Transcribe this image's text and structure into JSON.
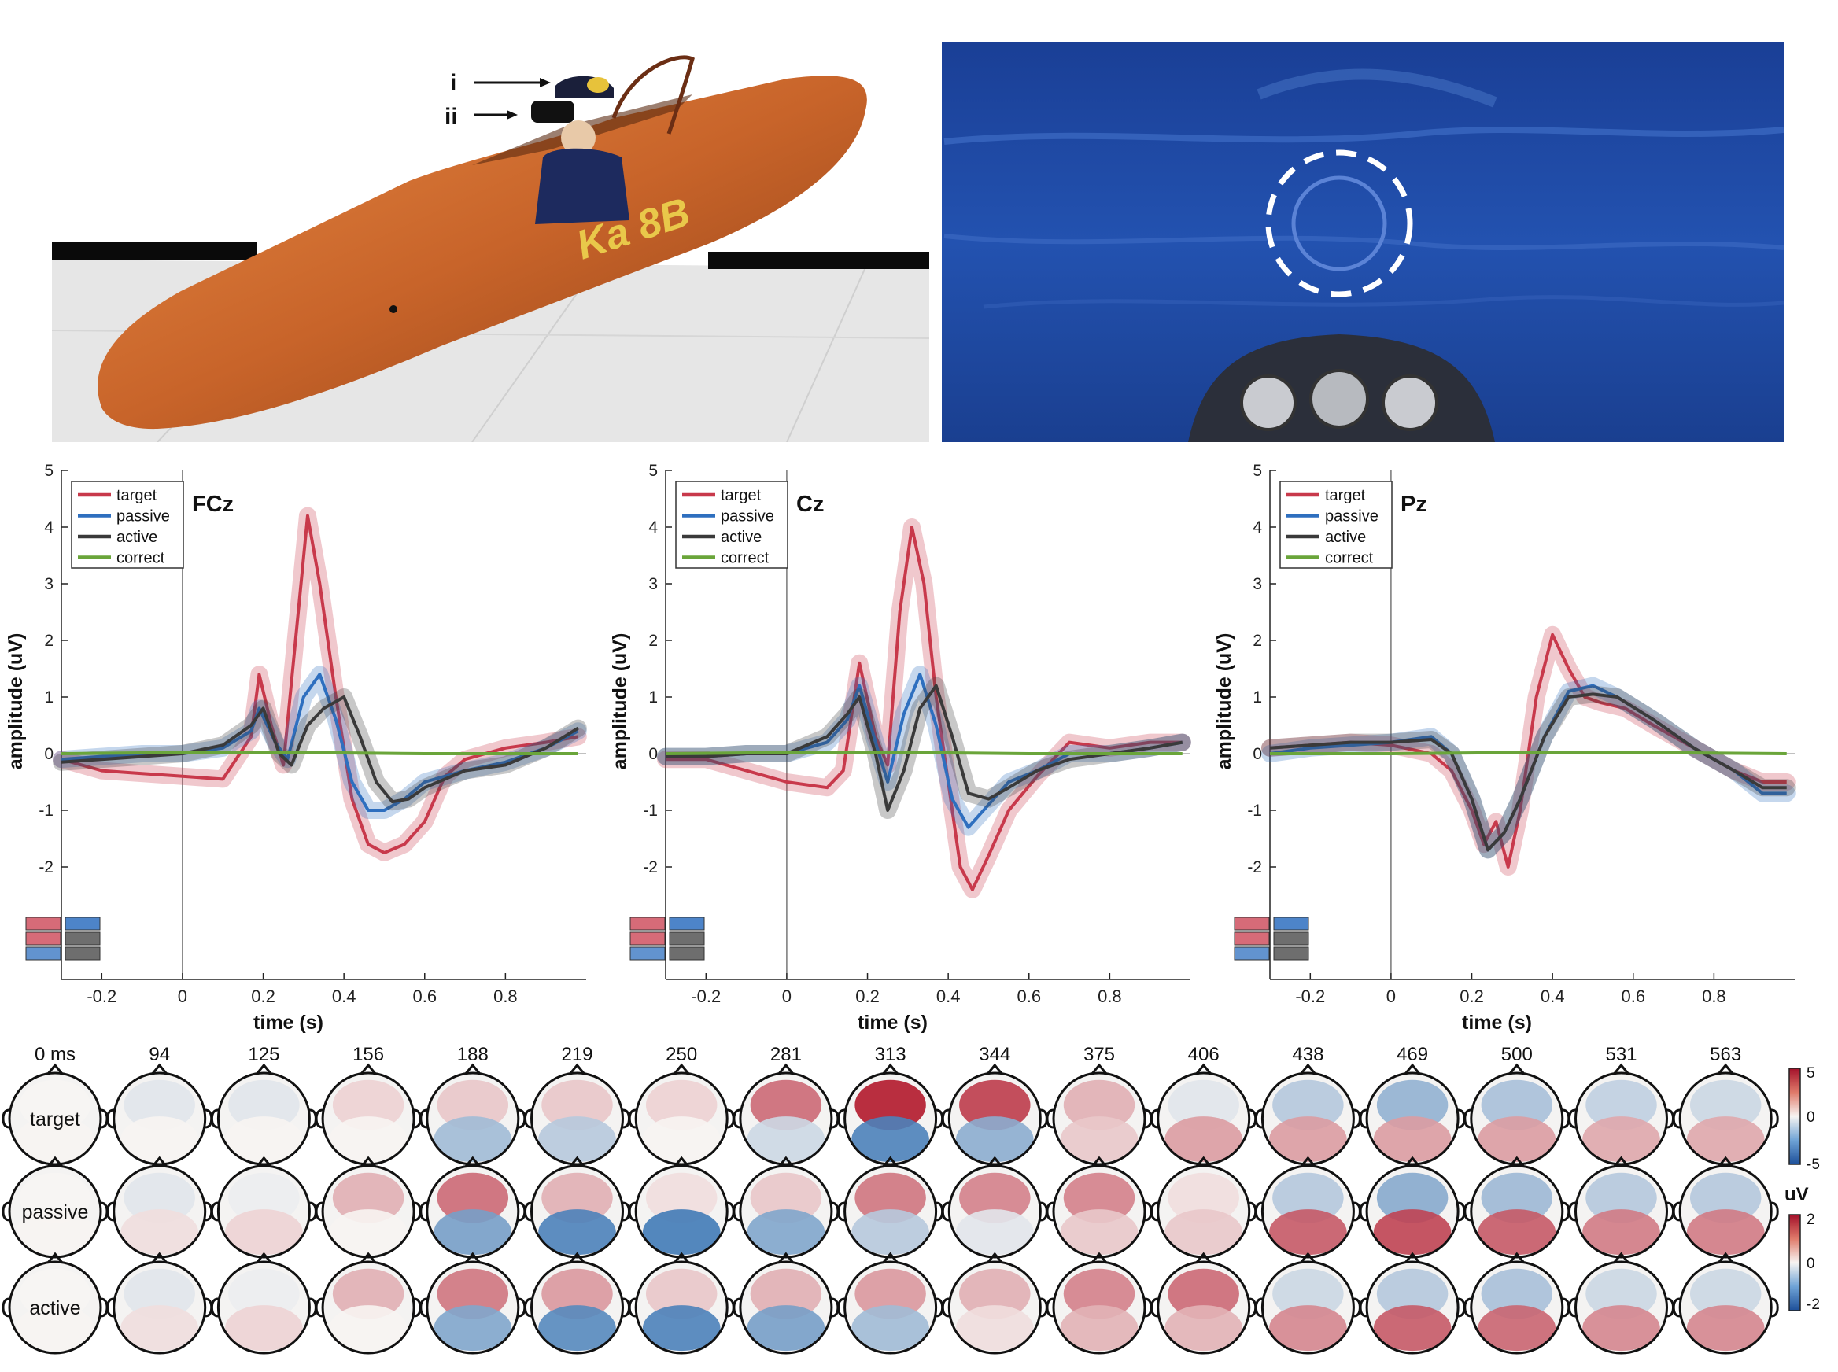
{
  "photo": {
    "annotations": [
      "i",
      "ii"
    ],
    "glider_lettering": "Ka 8B",
    "colors": {
      "hull": "#c8642a",
      "floor": "#e6e6e6",
      "bar": "#0a0a0a"
    }
  },
  "vr_view": {
    "colors": {
      "sky": "#1e4aa6",
      "target_ring": "#ffffff"
    }
  },
  "erp_plots": {
    "ylabel": "amplitude (uV)",
    "xlabel": "time (s)",
    "ylim": [
      -2.5,
      5
    ],
    "xlim": [
      -0.3,
      1.0
    ],
    "yticks": [
      "5",
      "4",
      "3",
      "2",
      "1",
      "0",
      "-1",
      "-2"
    ],
    "xticks": [
      "-0.2",
      "0",
      "0.2",
      "0.4",
      "0.6",
      "0.8"
    ],
    "legend": [
      "target",
      "passive",
      "active",
      "correct"
    ],
    "colors": {
      "target": "#c8394b",
      "passive": "#2e6fbf",
      "active": "#3a3a3a",
      "correct": "#6aa53a"
    }
  },
  "chart_data": [
    {
      "type": "line",
      "title": "FCz",
      "xlabel": "time (s)",
      "ylabel": "amplitude (uV)",
      "xlim": [
        -0.3,
        1.0
      ],
      "ylim": [
        -2.5,
        5
      ],
      "grid": false,
      "legend_position": "top-left",
      "series": [
        {
          "name": "target",
          "points": [
            [
              -0.3,
              -0.1
            ],
            [
              -0.2,
              -0.3
            ],
            [
              -0.1,
              -0.35
            ],
            [
              0.0,
              -0.4
            ],
            [
              0.1,
              -0.45
            ],
            [
              0.17,
              0.3
            ],
            [
              0.19,
              1.4
            ],
            [
              0.22,
              0.5
            ],
            [
              0.25,
              -0.2
            ],
            [
              0.28,
              2.0
            ],
            [
              0.31,
              4.2
            ],
            [
              0.34,
              3.0
            ],
            [
              0.38,
              1.0
            ],
            [
              0.42,
              -0.8
            ],
            [
              0.46,
              -1.6
            ],
            [
              0.5,
              -1.75
            ],
            [
              0.55,
              -1.6
            ],
            [
              0.6,
              -1.2
            ],
            [
              0.65,
              -0.4
            ],
            [
              0.7,
              -0.1
            ],
            [
              0.8,
              0.1
            ],
            [
              0.9,
              0.2
            ],
            [
              0.98,
              0.3
            ]
          ]
        },
        {
          "name": "passive",
          "points": [
            [
              -0.3,
              -0.1
            ],
            [
              -0.2,
              -0.05
            ],
            [
              -0.1,
              0.0
            ],
            [
              0.0,
              0.0
            ],
            [
              0.1,
              0.1
            ],
            [
              0.17,
              0.4
            ],
            [
              0.19,
              0.8
            ],
            [
              0.23,
              0.2
            ],
            [
              0.26,
              -0.1
            ],
            [
              0.3,
              1.0
            ],
            [
              0.34,
              1.4
            ],
            [
              0.38,
              0.6
            ],
            [
              0.42,
              -0.5
            ],
            [
              0.46,
              -1.0
            ],
            [
              0.5,
              -1.0
            ],
            [
              0.55,
              -0.8
            ],
            [
              0.6,
              -0.5
            ],
            [
              0.7,
              -0.3
            ],
            [
              0.8,
              -0.15
            ],
            [
              0.9,
              0.1
            ],
            [
              0.98,
              0.4
            ]
          ]
        },
        {
          "name": "active",
          "points": [
            [
              -0.3,
              -0.15
            ],
            [
              -0.2,
              -0.1
            ],
            [
              -0.1,
              -0.05
            ],
            [
              0.0,
              0.0
            ],
            [
              0.1,
              0.15
            ],
            [
              0.17,
              0.5
            ],
            [
              0.2,
              0.8
            ],
            [
              0.24,
              0.0
            ],
            [
              0.27,
              -0.2
            ],
            [
              0.31,
              0.5
            ],
            [
              0.35,
              0.8
            ],
            [
              0.4,
              1.0
            ],
            [
              0.44,
              0.3
            ],
            [
              0.48,
              -0.5
            ],
            [
              0.52,
              -0.85
            ],
            [
              0.56,
              -0.8
            ],
            [
              0.6,
              -0.6
            ],
            [
              0.7,
              -0.3
            ],
            [
              0.8,
              -0.2
            ],
            [
              0.9,
              0.1
            ],
            [
              0.98,
              0.45
            ]
          ]
        },
        {
          "name": "correct",
          "points": [
            [
              -0.3,
              0.0
            ],
            [
              0.0,
              0.02
            ],
            [
              0.3,
              0.02
            ],
            [
              0.6,
              0.0
            ],
            [
              0.98,
              0.0
            ]
          ]
        }
      ]
    },
    {
      "type": "line",
      "title": "Cz",
      "xlabel": "time (s)",
      "ylabel": "amplitude (uV)",
      "xlim": [
        -0.3,
        1.0
      ],
      "ylim": [
        -2.5,
        5
      ],
      "grid": false,
      "legend_position": "top-left",
      "series": [
        {
          "name": "target",
          "points": [
            [
              -0.3,
              -0.1
            ],
            [
              -0.2,
              -0.1
            ],
            [
              -0.1,
              -0.3
            ],
            [
              0.0,
              -0.5
            ],
            [
              0.1,
              -0.6
            ],
            [
              0.14,
              -0.3
            ],
            [
              0.18,
              1.6
            ],
            [
              0.22,
              0.3
            ],
            [
              0.25,
              -0.2
            ],
            [
              0.28,
              2.5
            ],
            [
              0.31,
              4.0
            ],
            [
              0.34,
              3.0
            ],
            [
              0.37,
              1.0
            ],
            [
              0.4,
              -0.5
            ],
            [
              0.43,
              -2.0
            ],
            [
              0.46,
              -2.4
            ],
            [
              0.5,
              -1.8
            ],
            [
              0.55,
              -1.0
            ],
            [
              0.62,
              -0.4
            ],
            [
              0.7,
              0.2
            ],
            [
              0.8,
              0.1
            ],
            [
              0.9,
              0.2
            ],
            [
              0.98,
              0.2
            ]
          ]
        },
        {
          "name": "passive",
          "points": [
            [
              -0.3,
              -0.05
            ],
            [
              -0.2,
              -0.05
            ],
            [
              -0.1,
              0.0
            ],
            [
              0.0,
              0.0
            ],
            [
              0.1,
              0.2
            ],
            [
              0.15,
              0.6
            ],
            [
              0.18,
              1.2
            ],
            [
              0.22,
              0.2
            ],
            [
              0.25,
              -0.5
            ],
            [
              0.29,
              0.7
            ],
            [
              0.33,
              1.4
            ],
            [
              0.37,
              0.5
            ],
            [
              0.41,
              -0.8
            ],
            [
              0.45,
              -1.3
            ],
            [
              0.5,
              -0.9
            ],
            [
              0.55,
              -0.5
            ],
            [
              0.62,
              -0.3
            ],
            [
              0.7,
              0.0
            ],
            [
              0.8,
              0.0
            ],
            [
              0.9,
              0.1
            ],
            [
              0.98,
              0.2
            ]
          ]
        },
        {
          "name": "active",
          "points": [
            [
              -0.3,
              -0.05
            ],
            [
              -0.2,
              -0.05
            ],
            [
              -0.1,
              0.0
            ],
            [
              0.0,
              0.0
            ],
            [
              0.1,
              0.3
            ],
            [
              0.15,
              0.7
            ],
            [
              0.18,
              1.0
            ],
            [
              0.22,
              0.0
            ],
            [
              0.25,
              -1.0
            ],
            [
              0.29,
              -0.3
            ],
            [
              0.33,
              0.8
            ],
            [
              0.37,
              1.2
            ],
            [
              0.41,
              0.3
            ],
            [
              0.45,
              -0.7
            ],
            [
              0.5,
              -0.8
            ],
            [
              0.55,
              -0.6
            ],
            [
              0.62,
              -0.3
            ],
            [
              0.7,
              -0.1
            ],
            [
              0.8,
              0.0
            ],
            [
              0.9,
              0.1
            ],
            [
              0.98,
              0.2
            ]
          ]
        },
        {
          "name": "correct",
          "points": [
            [
              -0.3,
              0.0
            ],
            [
              0.0,
              0.02
            ],
            [
              0.3,
              0.02
            ],
            [
              0.6,
              0.0
            ],
            [
              0.98,
              0.0
            ]
          ]
        }
      ]
    },
    {
      "type": "line",
      "title": "Pz",
      "xlabel": "time (s)",
      "ylabel": "amplitude (uV)",
      "xlim": [
        -0.3,
        1.0
      ],
      "ylim": [
        -2.5,
        5
      ],
      "grid": false,
      "legend_position": "top-left",
      "series": [
        {
          "name": "target",
          "points": [
            [
              -0.3,
              0.1
            ],
            [
              -0.2,
              0.15
            ],
            [
              -0.1,
              0.2
            ],
            [
              0.0,
              0.15
            ],
            [
              0.1,
              0.0
            ],
            [
              0.15,
              -0.3
            ],
            [
              0.2,
              -1.0
            ],
            [
              0.23,
              -1.6
            ],
            [
              0.26,
              -1.2
            ],
            [
              0.29,
              -2.0
            ],
            [
              0.32,
              -1.0
            ],
            [
              0.36,
              1.0
            ],
            [
              0.4,
              2.1
            ],
            [
              0.44,
              1.5
            ],
            [
              0.48,
              1.0
            ],
            [
              0.52,
              0.9
            ],
            [
              0.58,
              0.8
            ],
            [
              0.65,
              0.5
            ],
            [
              0.75,
              0.1
            ],
            [
              0.85,
              -0.3
            ],
            [
              0.92,
              -0.5
            ],
            [
              0.98,
              -0.5
            ]
          ]
        },
        {
          "name": "passive",
          "points": [
            [
              -0.3,
              0.0
            ],
            [
              -0.2,
              0.1
            ],
            [
              -0.1,
              0.15
            ],
            [
              0.0,
              0.2
            ],
            [
              0.1,
              0.3
            ],
            [
              0.15,
              0.0
            ],
            [
              0.2,
              -0.8
            ],
            [
              0.24,
              -1.7
            ],
            [
              0.28,
              -1.4
            ],
            [
              0.32,
              -0.8
            ],
            [
              0.38,
              0.3
            ],
            [
              0.44,
              1.1
            ],
            [
              0.5,
              1.2
            ],
            [
              0.56,
              1.0
            ],
            [
              0.65,
              0.6
            ],
            [
              0.75,
              0.1
            ],
            [
              0.85,
              -0.3
            ],
            [
              0.92,
              -0.7
            ],
            [
              0.98,
              -0.7
            ]
          ]
        },
        {
          "name": "active",
          "points": [
            [
              -0.3,
              0.1
            ],
            [
              -0.2,
              0.15
            ],
            [
              -0.1,
              0.2
            ],
            [
              0.0,
              0.2
            ],
            [
              0.1,
              0.25
            ],
            [
              0.15,
              0.0
            ],
            [
              0.2,
              -0.8
            ],
            [
              0.24,
              -1.7
            ],
            [
              0.28,
              -1.4
            ],
            [
              0.32,
              -0.8
            ],
            [
              0.38,
              0.3
            ],
            [
              0.44,
              1.0
            ],
            [
              0.5,
              1.05
            ],
            [
              0.56,
              1.0
            ],
            [
              0.65,
              0.6
            ],
            [
              0.75,
              0.1
            ],
            [
              0.85,
              -0.3
            ],
            [
              0.92,
              -0.6
            ],
            [
              0.98,
              -0.6
            ]
          ]
        },
        {
          "name": "correct",
          "points": [
            [
              -0.3,
              0.0
            ],
            [
              0.0,
              0.0
            ],
            [
              0.3,
              0.02
            ],
            [
              0.6,
              0.02
            ],
            [
              0.98,
              0.0
            ]
          ]
        }
      ]
    }
  ],
  "topomaps": {
    "times": [
      "0 ms",
      "94",
      "125",
      "156",
      "188",
      "219",
      "250",
      "281",
      "313",
      "344",
      "375",
      "406",
      "438",
      "469",
      "500",
      "531",
      "563"
    ],
    "rows": [
      "target",
      "passive",
      "active"
    ],
    "colorbar_target": [
      "5",
      "0",
      "-5"
    ],
    "colorbar_other": [
      "2",
      "0",
      "-2"
    ],
    "colorbar_unit": "uV",
    "levels": {
      "target": [
        [
          0,
          0
        ],
        [
          -0.1,
          0
        ],
        [
          -0.1,
          0
        ],
        [
          0.15,
          0
        ],
        [
          0.2,
          -0.4
        ],
        [
          0.2,
          -0.3
        ],
        [
          0.15,
          0
        ],
        [
          0.6,
          -0.2
        ],
        [
          0.95,
          -0.8
        ],
        [
          0.8,
          -0.5
        ],
        [
          0.3,
          0.2
        ],
        [
          -0.1,
          0.4
        ],
        [
          -0.3,
          0.4
        ],
        [
          -0.45,
          0.4
        ],
        [
          -0.35,
          0.4
        ],
        [
          -0.25,
          0.35
        ],
        [
          -0.2,
          0.35
        ]
      ],
      "passive": [
        [
          0,
          0
        ],
        [
          -0.1,
          0.1
        ],
        [
          -0.05,
          0.15
        ],
        [
          0.3,
          0
        ],
        [
          0.6,
          -0.6
        ],
        [
          0.3,
          -0.8
        ],
        [
          0.1,
          -0.85
        ],
        [
          0.2,
          -0.55
        ],
        [
          0.55,
          -0.3
        ],
        [
          0.5,
          -0.1
        ],
        [
          0.5,
          0.2
        ],
        [
          0.1,
          0.2
        ],
        [
          -0.3,
          0.7
        ],
        [
          -0.5,
          0.8
        ],
        [
          -0.4,
          0.7
        ],
        [
          -0.3,
          0.55
        ],
        [
          -0.3,
          0.55
        ]
      ],
      "active": [
        [
          0,
          0
        ],
        [
          -0.1,
          0.1
        ],
        [
          -0.05,
          0.15
        ],
        [
          0.3,
          0
        ],
        [
          0.55,
          -0.55
        ],
        [
          0.4,
          -0.75
        ],
        [
          0.2,
          -0.8
        ],
        [
          0.3,
          -0.6
        ],
        [
          0.4,
          -0.4
        ],
        [
          0.3,
          0.1
        ],
        [
          0.5,
          0.3
        ],
        [
          0.6,
          0.3
        ],
        [
          -0.2,
          0.5
        ],
        [
          -0.3,
          0.7
        ],
        [
          -0.35,
          0.65
        ],
        [
          -0.2,
          0.5
        ],
        [
          -0.2,
          0.5
        ]
      ]
    }
  }
}
